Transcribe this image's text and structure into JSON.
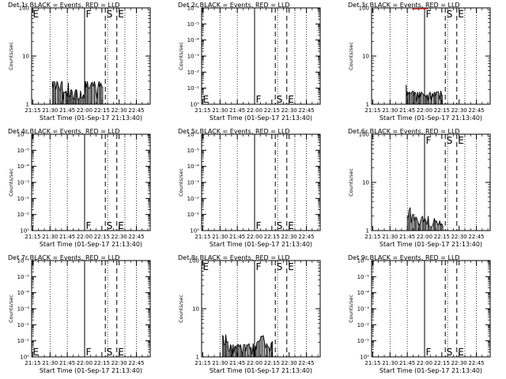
{
  "style": {
    "foreground": "#000000",
    "background": "#ffffff",
    "lld_color": "#ff0000"
  },
  "shared": {
    "time_ticks": [
      "21:15",
      "21:30",
      "21:45",
      "22:00",
      "22:15",
      "22:30",
      "22:45"
    ],
    "time_tick_minutes": [
      0,
      15,
      30,
      45,
      60,
      75,
      90
    ],
    "time_range_minutes": [
      -1,
      102
    ],
    "xlabel": "Start Time (01-Sep-17 21:13:40)",
    "ylabel": "Counts/sec",
    "vertical_markers": [
      {
        "minute": 45,
        "style": "solid",
        "label": "F"
      },
      {
        "minute": 63,
        "style": "dashed",
        "label": "S"
      },
      {
        "minute": 73,
        "style": "dashed",
        "label": "E"
      }
    ],
    "dotted_lines_minutes": [
      15,
      30,
      65,
      80,
      90
    ]
  },
  "chart_data": [
    {
      "title": "Det 1r BLACK = Events, RED = LLD",
      "type": "line",
      "scale": "log_decades",
      "y_decades": [
        0,
        2
      ],
      "y_ticks": [
        "1",
        "10",
        "100"
      ],
      "marker_labels_at": "top",
      "has_e_left": true,
      "events": [
        [
          17,
          3
        ],
        [
          17.7,
          2.2
        ],
        [
          18.3,
          3
        ],
        [
          19.3,
          2.8
        ],
        [
          20,
          2
        ],
        [
          21.1,
          3
        ],
        [
          22.1,
          2.5
        ],
        [
          22.9,
          2.1
        ],
        [
          23.7,
          1.9
        ],
        [
          24.4,
          2.7
        ],
        [
          25.4,
          3
        ],
        [
          26.2,
          1.2
        ],
        [
          26.9,
          1.8
        ],
        [
          27.9,
          1.7
        ],
        [
          28.8,
          1.9
        ],
        [
          29.5,
          1.7
        ],
        [
          30.2,
          1.4
        ],
        [
          30.9,
          2.8
        ],
        [
          31.5,
          1.5
        ],
        [
          32.3,
          1.4
        ],
        [
          33.1,
          2
        ],
        [
          33.8,
          2
        ],
        [
          34.6,
          1.6
        ],
        [
          35.3,
          1.2
        ],
        [
          36.1,
          1.4
        ],
        [
          36.8,
          1.9
        ],
        [
          37.5,
          2
        ],
        [
          38.1,
          2
        ],
        [
          39.2,
          1.2
        ],
        [
          40,
          1.3
        ],
        [
          40.8,
          1.3
        ],
        [
          41.5,
          1.9
        ],
        [
          42.3,
          1.4
        ],
        [
          43.1,
          1.3
        ],
        [
          44,
          1.6
        ],
        [
          44.9,
          1.3
        ],
        [
          45.8,
          3
        ],
        [
          46.5,
          2.2
        ],
        [
          47.4,
          3
        ],
        [
          48.2,
          2.2
        ],
        [
          49.1,
          2.1
        ],
        [
          49.9,
          2.4
        ],
        [
          50.9,
          2.7
        ],
        [
          51.6,
          2.9
        ],
        [
          52.7,
          2.3
        ],
        [
          53.5,
          3
        ],
        [
          54.6,
          2.2
        ],
        [
          55.8,
          1.3
        ],
        [
          56.5,
          2.2
        ],
        [
          57.5,
          3
        ],
        [
          58.2,
          2.3
        ],
        [
          59,
          2.8
        ],
        [
          60,
          2.3
        ],
        [
          60.8,
          2.3
        ]
      ],
      "lld": []
    },
    {
      "title": "Det 2r BLACK = Events, RED = LLD",
      "type": "line",
      "scale": "log_decades",
      "y_decades": [
        0,
        6
      ],
      "y_ticks": [
        "10⁰",
        "10⁻¹",
        "10⁻²",
        "10⁻³",
        "10⁻⁴",
        "10⁻⁵",
        "10⁻⁶"
      ],
      "marker_labels_at": "bottom",
      "has_e_left": true,
      "events": [],
      "lld": []
    },
    {
      "title": "Det 3r BLACK = Events, RED = LLD",
      "type": "line",
      "scale": "log_decades",
      "y_decades": [
        0,
        2
      ],
      "y_ticks": [
        "1",
        "10",
        "100"
      ],
      "marker_labels_at": "top",
      "has_e_left": false,
      "events": [
        [
          29,
          2.5
        ],
        [
          29.6,
          1.5
        ],
        [
          30.3,
          1.8
        ],
        [
          31.2,
          1.6
        ],
        [
          31.8,
          1.8
        ],
        [
          32.5,
          1.7
        ],
        [
          33.4,
          1.7
        ],
        [
          34.1,
          1.8
        ],
        [
          35.1,
          1.9
        ],
        [
          35.8,
          1.5
        ],
        [
          36.4,
          1.8
        ],
        [
          37.3,
          1.7
        ],
        [
          38.1,
          1.1
        ],
        [
          38.9,
          1.8
        ],
        [
          39.9,
          1.3
        ],
        [
          40.6,
          1.8
        ],
        [
          41.2,
          1.4
        ],
        [
          42.1,
          1.8
        ],
        [
          43,
          1.7
        ],
        [
          44,
          1.6
        ],
        [
          44.8,
          1.5
        ],
        [
          45.9,
          1.5
        ],
        [
          46.5,
          1.4
        ],
        [
          47.2,
          1.6
        ],
        [
          48,
          1.2
        ],
        [
          48.9,
          1.6
        ],
        [
          49.9,
          1.8
        ],
        [
          50.8,
          1.2
        ],
        [
          51.7,
          1.7
        ],
        [
          52.8,
          1.4
        ],
        [
          53.5,
          1.8
        ],
        [
          54.4,
          1.5
        ],
        [
          55.1,
          1.8
        ],
        [
          56,
          1.8
        ],
        [
          57.1,
          1.8
        ],
        [
          58.1,
          1.2
        ],
        [
          59.1,
          1.9
        ],
        [
          59.8,
          1.6
        ],
        [
          60.6,
          1.5
        ]
      ],
      "lld": [
        [
          34.5,
          100
        ],
        [
          36,
          98
        ],
        [
          38,
          100
        ],
        [
          40,
          97
        ],
        [
          42,
          100
        ],
        [
          44,
          99
        ],
        [
          45,
          100
        ],
        [
          46,
          98
        ],
        [
          48,
          100
        ]
      ]
    },
    {
      "title": "Det 4r BLACK = Events, RED = LLD",
      "type": "line",
      "scale": "log_decades",
      "y_decades": [
        0,
        6
      ],
      "y_ticks": [
        "10⁰",
        "10⁻¹",
        "10⁻²",
        "10⁻³",
        "10⁻⁴",
        "10⁻⁵",
        "10⁻⁶"
      ],
      "marker_labels_at": "bottom",
      "has_e_left": false,
      "events": [],
      "lld": []
    },
    {
      "title": "Det 5r BLACK = Events, RED = LLD",
      "type": "line",
      "scale": "log_decades",
      "y_decades": [
        0,
        6
      ],
      "y_ticks": [
        "10⁰",
        "10⁻¹",
        "10⁻²",
        "10⁻³",
        "10⁻⁴",
        "10⁻⁵",
        "10⁻⁶"
      ],
      "marker_labels_at": "bottom",
      "has_e_left": false,
      "events": [],
      "lld": []
    },
    {
      "title": "Det 6r BLACK = Events, RED = LLD",
      "type": "line",
      "scale": "log_decades",
      "y_decades": [
        0,
        2
      ],
      "y_ticks": [
        "1",
        "10",
        "100"
      ],
      "marker_labels_at": "top",
      "has_e_left": false,
      "events": [
        [
          30,
          2
        ],
        [
          30.7,
          1.8
        ],
        [
          31.5,
          2.6
        ],
        [
          32.5,
          3
        ],
        [
          33.4,
          1.4
        ],
        [
          34.4,
          2.1
        ],
        [
          35.5,
          2.2
        ],
        [
          36.2,
          1.6
        ],
        [
          37,
          1.9
        ],
        [
          37.9,
          1.9
        ],
        [
          38.9,
          1.6
        ],
        [
          39.7,
          1.4
        ],
        [
          40.5,
          1.3
        ],
        [
          41.2,
          1.4
        ],
        [
          42.2,
          1.8
        ],
        [
          43.3,
          2
        ],
        [
          44.1,
          1.5
        ],
        [
          45.2,
          1.8
        ],
        [
          46.1,
          1.6
        ],
        [
          47.1,
          1.3
        ],
        [
          48.2,
          2
        ],
        [
          48.9,
          1.2
        ],
        [
          49.8,
          1.2
        ],
        [
          50.6,
          1.2
        ],
        [
          51.7,
          1.2
        ],
        [
          52.8,
          1.5
        ],
        [
          53.5,
          1.8
        ],
        [
          54.4,
          1.5
        ],
        [
          55.2,
          1.6
        ],
        [
          56.2,
          1.4
        ],
        [
          57.2,
          1.3
        ],
        [
          58.2,
          1.6
        ],
        [
          58.9,
          1.3
        ],
        [
          59.9,
          1.4
        ],
        [
          61,
          1.2
        ]
      ],
      "lld": []
    },
    {
      "title": "Det 7r BLACK = Events, RED = LLD",
      "type": "line",
      "scale": "log_decades",
      "y_decades": [
        0,
        6
      ],
      "y_ticks": [
        "10⁰",
        "10⁻¹",
        "10⁻²",
        "10⁻³",
        "10⁻⁴",
        "10⁻⁵",
        "10⁻⁶"
      ],
      "marker_labels_at": "bottom",
      "has_e_left": true,
      "events": [],
      "lld": []
    },
    {
      "title": "Det 8r BLACK = Events, RED = LLD",
      "type": "line",
      "scale": "log_decades",
      "y_decades": [
        0,
        2
      ],
      "y_ticks": [
        "1",
        "10",
        "100"
      ],
      "marker_labels_at": "top",
      "has_e_left": true,
      "events": [
        [
          17,
          2.8
        ],
        [
          17.7,
          2.7
        ],
        [
          18.3,
          1.8
        ],
        [
          19.3,
          1.8
        ],
        [
          20,
          2.9
        ],
        [
          20.7,
          2
        ],
        [
          21.6,
          2.1
        ],
        [
          22.4,
          1.3
        ],
        [
          23.2,
          1.3
        ],
        [
          24.1,
          1.8
        ],
        [
          24.7,
          1.7
        ],
        [
          25.6,
          1.1
        ],
        [
          26.3,
          1.8
        ],
        [
          27,
          1.2
        ],
        [
          28,
          1.7
        ],
        [
          28.7,
          1.5
        ],
        [
          29.5,
          1.7
        ],
        [
          30.4,
          1.8
        ],
        [
          31.2,
          1.8
        ],
        [
          32,
          1.6
        ],
        [
          32.9,
          1.8
        ],
        [
          33.8,
          1.3
        ],
        [
          34.5,
          1.1
        ],
        [
          35.4,
          1.8
        ],
        [
          36.5,
          1.8
        ],
        [
          37.2,
          1.3
        ],
        [
          38.2,
          1.8
        ],
        [
          39.2,
          1.7
        ],
        [
          40.2,
          1.9
        ],
        [
          41.2,
          1.4
        ],
        [
          41.9,
          1.6
        ],
        [
          42.8,
          1.1
        ],
        [
          43.8,
          1.9
        ],
        [
          44.4,
          1.3
        ],
        [
          45.5,
          1.7
        ],
        [
          46.2,
          1.4
        ],
        [
          47,
          2
        ],
        [
          47.8,
          2.1
        ],
        [
          48.7,
          2.1
        ],
        [
          49.7,
          2.2
        ],
        [
          50.5,
          2.7
        ],
        [
          51.6,
          2.6
        ],
        [
          52.6,
          2.8
        ],
        [
          53.6,
          2
        ],
        [
          54.7,
          1.5
        ],
        [
          55.6,
          1.9
        ],
        [
          56.5,
          1.6
        ],
        [
          57.5,
          1.6
        ],
        [
          58.4,
          1.3
        ],
        [
          59.5,
          2
        ],
        [
          60.1,
          2
        ],
        [
          60.7,
          2.1
        ]
      ],
      "lld": []
    },
    {
      "title": "Det 9r BLACK = Events, RED = LLD",
      "type": "line",
      "scale": "log_decades",
      "y_decades": [
        0,
        6
      ],
      "y_ticks": [
        "10⁰",
        "10⁻¹",
        "10⁻²",
        "10⁻³",
        "10⁻⁴",
        "10⁻⁵",
        "10⁻⁶"
      ],
      "marker_labels_at": "bottom",
      "has_e_left": false,
      "events": [],
      "lld": []
    }
  ]
}
